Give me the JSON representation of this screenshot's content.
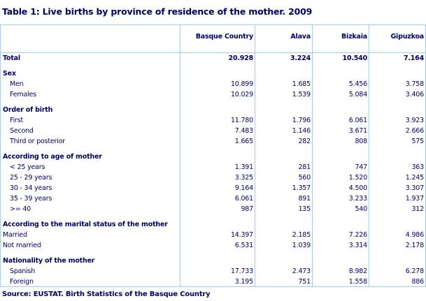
{
  "title": "Table 1: Live births by province of residence of the mother. 2009",
  "columns": [
    "",
    "Basque Country",
    "Alava",
    "Bizkaia",
    "Gipuzkoa"
  ],
  "rows": [
    {
      "type": "total",
      "label": "Total",
      "values": [
        "20.928",
        "3.224",
        "10.540",
        "7.164"
      ]
    },
    {
      "type": "sec",
      "label": "Sex",
      "values": [
        "",
        "",
        "",
        ""
      ]
    },
    {
      "type": "item",
      "indent": true,
      "label": "Men",
      "values": [
        "10.899",
        "1.685",
        "5.456",
        "3.758"
      ]
    },
    {
      "type": "item",
      "indent": true,
      "label": "Females",
      "values": [
        "10.029",
        "1.539",
        "5.084",
        "3.406"
      ]
    },
    {
      "type": "sec",
      "label": "Order of birth",
      "values": [
        "",
        "",
        "",
        ""
      ]
    },
    {
      "type": "item",
      "indent": true,
      "label": "First",
      "values": [
        "11.780",
        "1.796",
        "6.061",
        "3.923"
      ]
    },
    {
      "type": "item",
      "indent": true,
      "label": "Second",
      "values": [
        "7.483",
        "1.146",
        "3.671",
        "2.666"
      ]
    },
    {
      "type": "item",
      "indent": true,
      "label": "Third or posterior",
      "values": [
        "1.665",
        "282",
        "808",
        "575"
      ]
    },
    {
      "type": "sec",
      "label": "According to age of mother",
      "values": [
        "",
        "",
        "",
        ""
      ]
    },
    {
      "type": "item",
      "indent": true,
      "label": "< 25 years",
      "values": [
        "1.391",
        "281",
        "747",
        "363"
      ]
    },
    {
      "type": "item",
      "indent": true,
      "label": "25 - 29 years",
      "values": [
        "3.325",
        "560",
        "1.520",
        "1.245"
      ]
    },
    {
      "type": "item",
      "indent": true,
      "label": "30 - 34 years",
      "values": [
        "9.164",
        "1.357",
        "4.500",
        "3.307"
      ]
    },
    {
      "type": "item",
      "indent": true,
      "label": "35 - 39 years",
      "values": [
        "6.061",
        "891",
        "3.233",
        "1.937"
      ]
    },
    {
      "type": "item",
      "indent": true,
      "label": ">= 40",
      "values": [
        "987",
        "135",
        "540",
        "312"
      ]
    },
    {
      "type": "sec",
      "label": "According to the marital status of the mother",
      "values": [
        "",
        "",
        "",
        ""
      ]
    },
    {
      "type": "item",
      "indent": false,
      "label": "Married",
      "values": [
        "14.397",
        "2.185",
        "7.226",
        "4.986"
      ]
    },
    {
      "type": "item",
      "indent": false,
      "label": "Not married",
      "values": [
        "6.531",
        "1.039",
        "3.314",
        "2.178"
      ]
    },
    {
      "type": "sec",
      "label": "Nationality of the mother",
      "values": [
        "",
        "",
        "",
        ""
      ]
    },
    {
      "type": "item",
      "indent": true,
      "label": "Spanish",
      "values": [
        "17.733",
        "2.473",
        "8.982",
        "6.278"
      ]
    },
    {
      "type": "item",
      "indent": true,
      "label": "Foreign",
      "values": [
        "3.195",
        "751",
        "1.558",
        "886"
      ]
    }
  ],
  "source": "Source: EUSTAT. Birth Statistics of the Basque Country"
}
